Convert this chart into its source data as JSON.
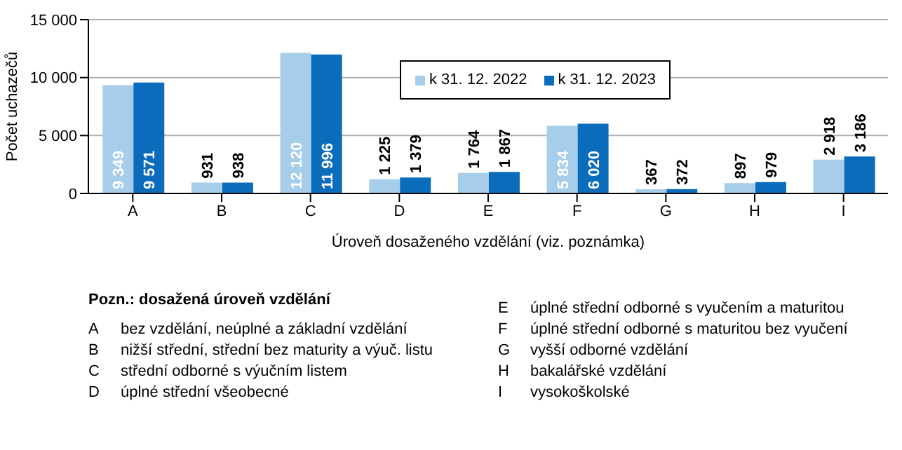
{
  "chart_data": {
    "type": "bar",
    "xlabel": "Úroveň dosaženého vzdělání  (viz. poznámka)",
    "ylabel": "Počet uchazečů",
    "categories": [
      "A",
      "B",
      "C",
      "D",
      "E",
      "F",
      "G",
      "H",
      "I"
    ],
    "series": [
      {
        "name": "k 31. 12. 2022",
        "color": "#a6cde9",
        "values": [
          9349,
          931,
          12120,
          1225,
          1764,
          5834,
          367,
          897,
          2918
        ]
      },
      {
        "name": "k 31. 12. 2023",
        "color": "#0b6cbb",
        "values": [
          9571,
          938,
          11996,
          1379,
          1867,
          6020,
          372,
          979,
          3186
        ]
      }
    ],
    "ylim": [
      0,
      15000
    ],
    "yticks": [
      {
        "value": 0,
        "label": "0"
      },
      {
        "value": 5000,
        "label": "5 000"
      },
      {
        "value": 10000,
        "label": "10 000"
      },
      {
        "value": 15000,
        "label": "15 000"
      }
    ],
    "grid": "y",
    "legend": "top",
    "data_labels": true,
    "annotations": [
      "Pozn.: dosažená úroveň vzdělání",
      "A bez vzdělání, neúplné a základní vzdělání",
      "B nižší střední, střední bez maturity a výuč. listu",
      "C střední odborné s výučním listem",
      "D úplné střední všeobecné",
      "E úplné střední odborné s vyučením a maturitou",
      "F úplné střední odborné s maturitou bez vyučení",
      "G vyšší odborné vzdělání",
      "H bakalářské vzdělání",
      "I vysokoškolské"
    ]
  }
}
